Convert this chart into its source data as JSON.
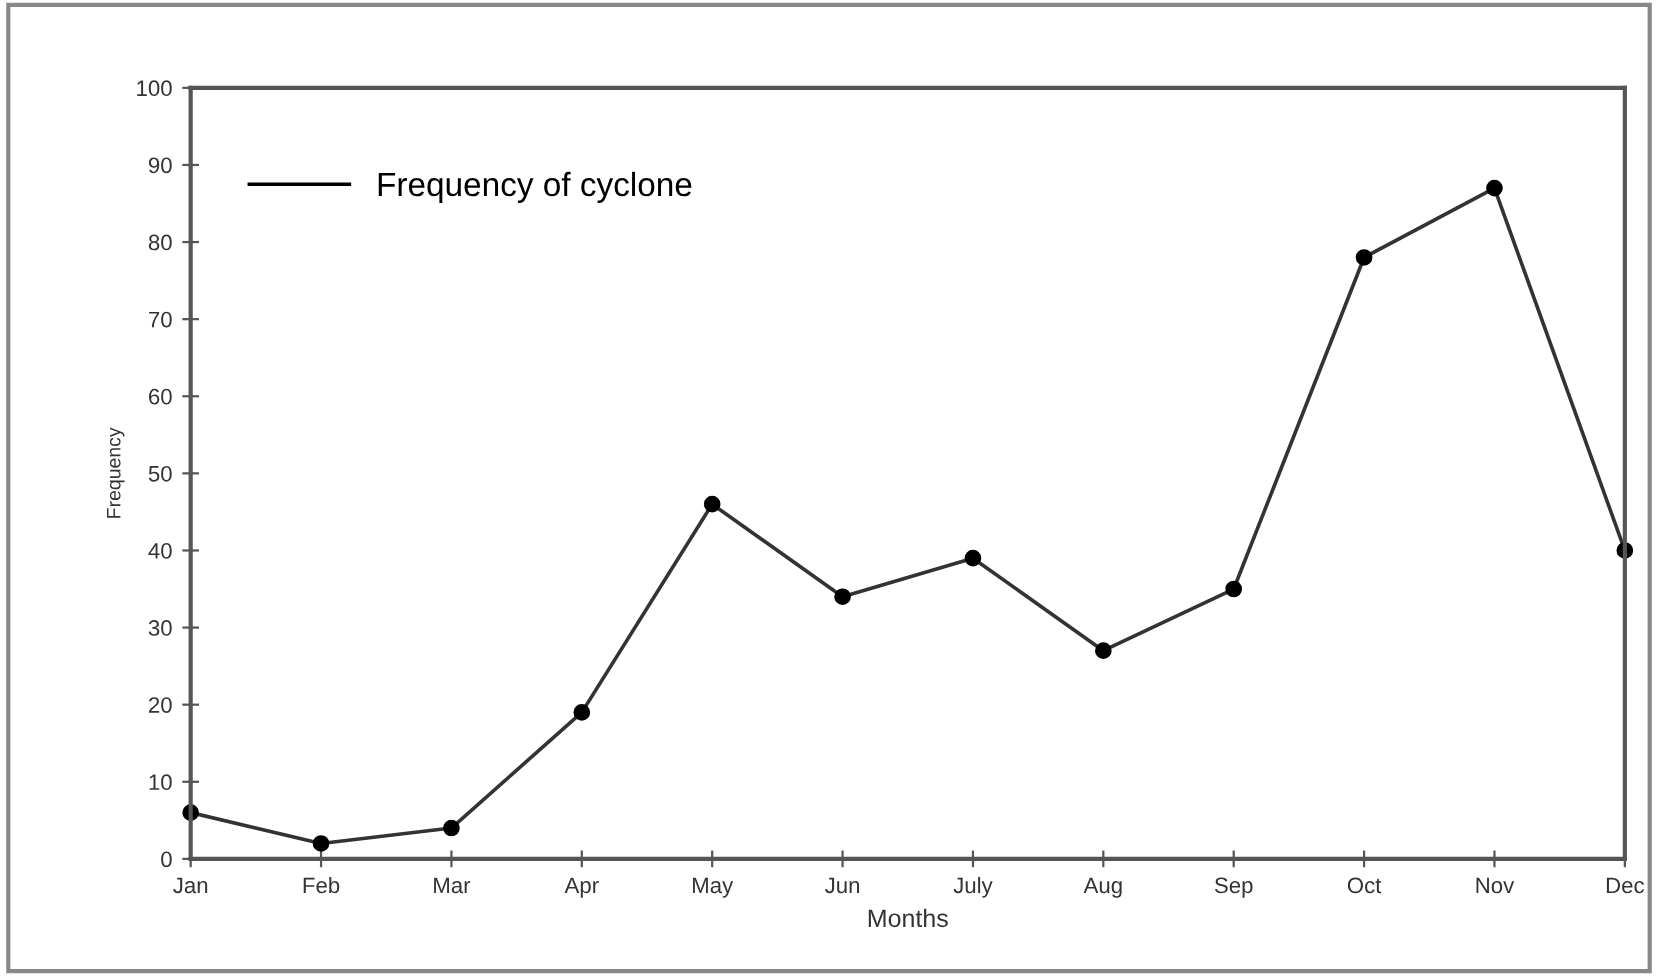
{
  "chart_data": {
    "type": "line",
    "xlabel": "Months",
    "ylabel": "Frequency",
    "categories": [
      "Jan",
      "Feb",
      "Mar",
      "Apr",
      "May",
      "Jun",
      "July",
      "Aug",
      "Sep",
      "Oct",
      "Nov",
      "Dec"
    ],
    "series": [
      {
        "name": "Frequency of cyclone",
        "color": "#333333",
        "values": [
          6,
          2,
          4,
          19,
          46,
          34,
          39,
          27,
          35,
          78,
          87,
          40
        ]
      }
    ],
    "ylim": [
      0,
      100
    ],
    "yticks": [
      0,
      10,
      20,
      30,
      40,
      50,
      60,
      70,
      80,
      90,
      100
    ],
    "marker": "circle",
    "line_style": "solid",
    "legend": "top left",
    "grid": false
  }
}
